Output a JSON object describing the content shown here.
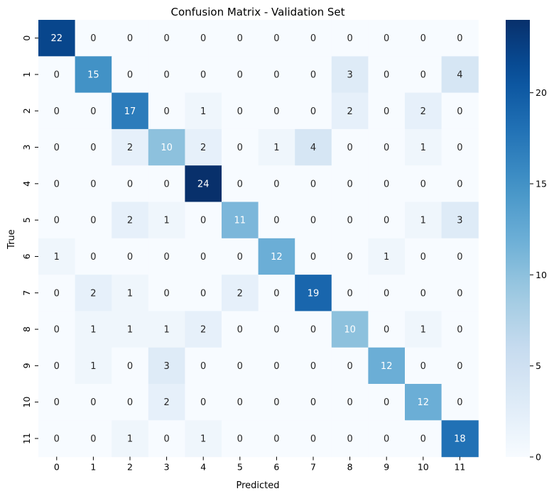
{
  "chart_data": {
    "type": "heatmap",
    "title": "Confusion Matrix - Validation Set",
    "xlabel": "Predicted",
    "ylabel": "True",
    "x_categories": [
      "0",
      "1",
      "2",
      "3",
      "4",
      "5",
      "6",
      "7",
      "8",
      "9",
      "10",
      "11"
    ],
    "y_categories": [
      "0",
      "1",
      "2",
      "3",
      "4",
      "5",
      "6",
      "7",
      "8",
      "9",
      "10",
      "11"
    ],
    "matrix": [
      [
        22,
        0,
        0,
        0,
        0,
        0,
        0,
        0,
        0,
        0,
        0,
        0
      ],
      [
        0,
        15,
        0,
        0,
        0,
        0,
        0,
        0,
        3,
        0,
        0,
        4
      ],
      [
        0,
        0,
        17,
        0,
        1,
        0,
        0,
        0,
        2,
        0,
        2,
        0
      ],
      [
        0,
        0,
        2,
        10,
        2,
        0,
        1,
        4,
        0,
        0,
        1,
        0
      ],
      [
        0,
        0,
        0,
        0,
        24,
        0,
        0,
        0,
        0,
        0,
        0,
        0
      ],
      [
        0,
        0,
        2,
        1,
        0,
        11,
        0,
        0,
        0,
        0,
        1,
        3
      ],
      [
        1,
        0,
        0,
        0,
        0,
        0,
        12,
        0,
        0,
        1,
        0,
        0
      ],
      [
        0,
        2,
        1,
        0,
        0,
        2,
        0,
        19,
        0,
        0,
        0,
        0
      ],
      [
        0,
        1,
        1,
        1,
        2,
        0,
        0,
        0,
        10,
        0,
        1,
        0
      ],
      [
        0,
        1,
        0,
        3,
        0,
        0,
        0,
        0,
        0,
        12,
        0,
        0
      ],
      [
        0,
        0,
        0,
        2,
        0,
        0,
        0,
        0,
        0,
        0,
        12,
        0
      ],
      [
        0,
        0,
        1,
        0,
        1,
        0,
        0,
        0,
        0,
        0,
        0,
        18
      ]
    ],
    "colormap": "Blues",
    "colorbar": {
      "range": [
        0,
        24
      ],
      "ticks": [
        0,
        5,
        10,
        15,
        20
      ]
    },
    "colors": {
      "low": "#f7fbff",
      "high": "#08306b",
      "text_dark": "#262626",
      "text_light": "#ffffff"
    }
  }
}
